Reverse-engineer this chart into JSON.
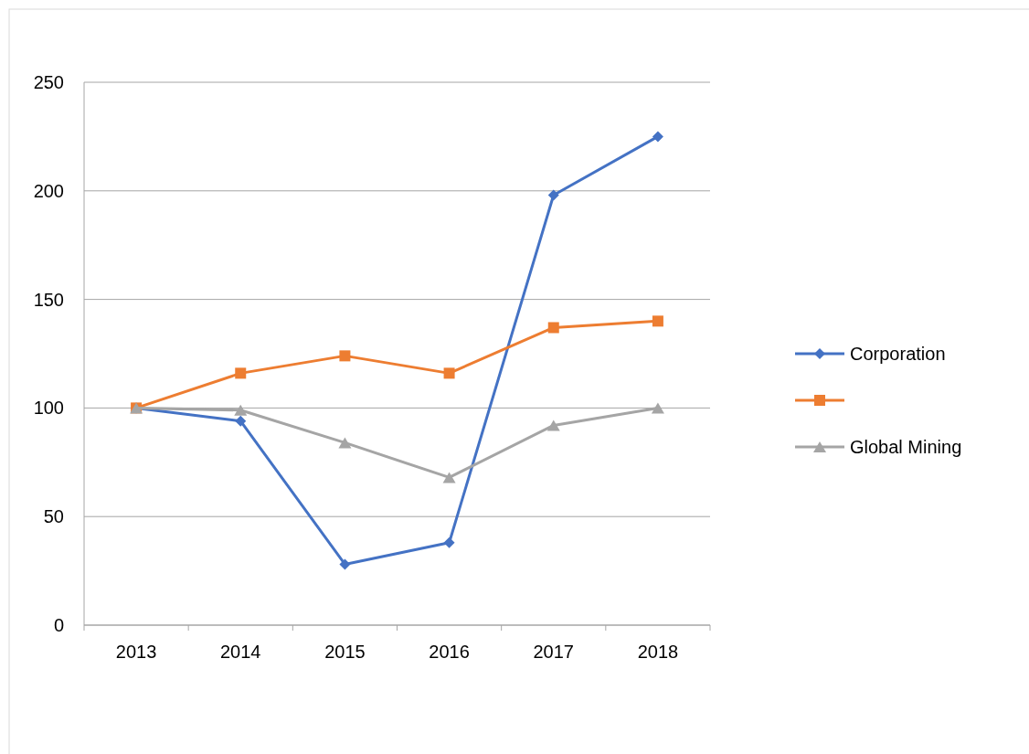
{
  "chart_data": {
    "type": "line",
    "categories": [
      "2013",
      "2014",
      "2015",
      "2016",
      "2017",
      "2018"
    ],
    "series": [
      {
        "name": "Corporation",
        "color": "#4472c4",
        "marker": "diamond",
        "values": [
          100,
          94,
          28,
          38,
          198,
          225
        ]
      },
      {
        "color": "#ed7d31",
        "marker": "square",
        "values": [
          100,
          116,
          124,
          116,
          137,
          140
        ]
      },
      {
        "name": "Global Mining",
        "color": "#a5a5a5",
        "marker": "triangle",
        "values": [
          100,
          99,
          84,
          68,
          92,
          100
        ]
      }
    ],
    "ylim": [
      0,
      250
    ],
    "yticks": [
      0,
      50,
      100,
      150,
      200,
      250
    ],
    "grid": "y",
    "legend": "right"
  }
}
